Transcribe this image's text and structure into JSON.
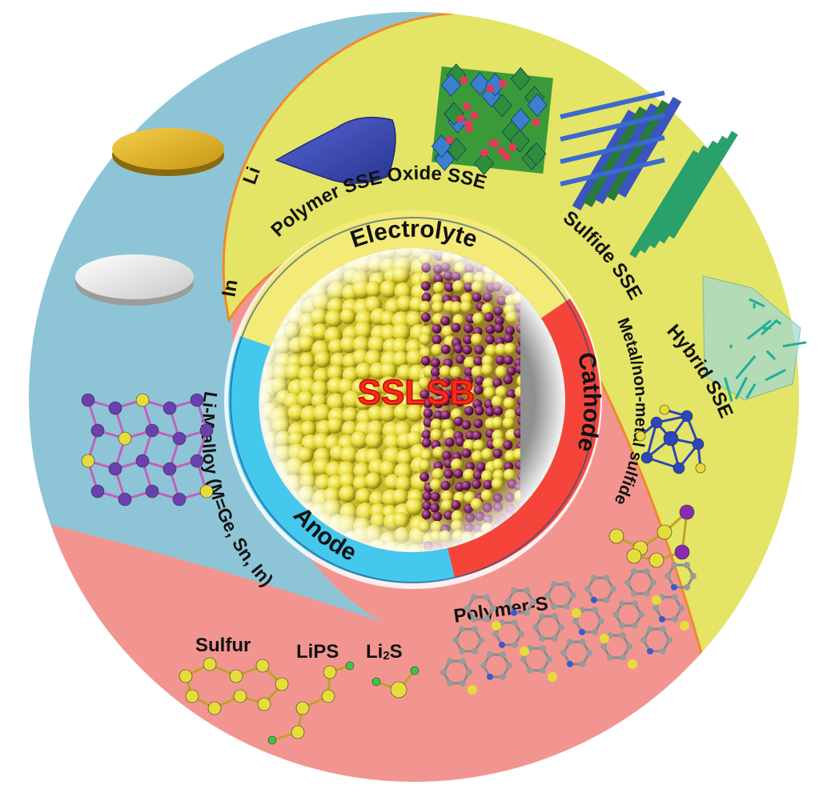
{
  "center": {
    "label": "SSLSB"
  },
  "ring": {
    "electrolyte": "Electrolyte",
    "cathode": "Cathode",
    "anode": "Anode"
  },
  "anode_materials": {
    "li": "Li",
    "in": "In",
    "alloy": "Li-M alloy (M=Ge, Sn, In)"
  },
  "electrolyte_materials": {
    "polymer": "Polymer SSE",
    "oxide": "Oxide SSE",
    "sulfide": "Sulfide SSE",
    "hybrid": "Hybrid SSE"
  },
  "cathode_materials": {
    "metal_sulfide": "Metal/non-metal sulfide",
    "polymer_s": "Polymer-S",
    "sulfur": "Sulfur",
    "lips": "LiPS",
    "li2s_main": "Li",
    "li2s_sub": "2",
    "li2s_tail": "S"
  },
  "colors": {
    "anode_region": "#8ec5d6",
    "electrolyte_region": "#e4e466",
    "cathode_region": "#f29590",
    "ring_electrolyte": "#f4ea78",
    "ring_cathode": "#f5453a",
    "ring_anode": "#44c8ee",
    "center_text": "#ff2a1a"
  }
}
